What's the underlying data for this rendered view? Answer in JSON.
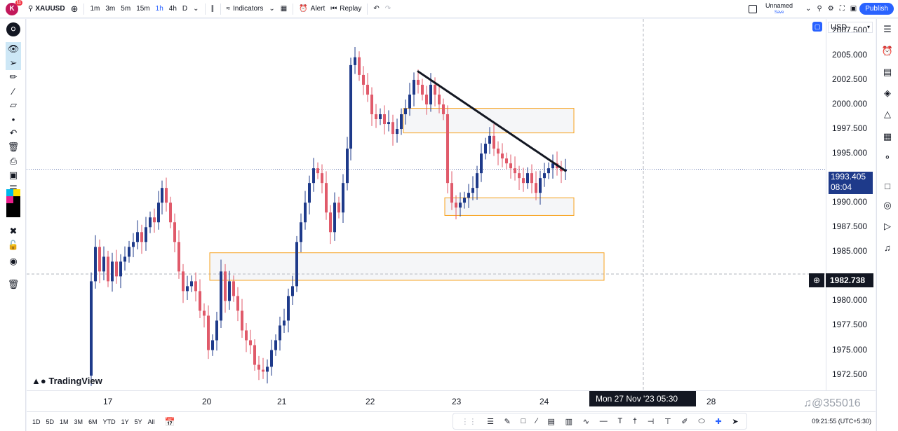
{
  "topbar": {
    "avatar_letter": "K",
    "avatar_badge": "11",
    "symbol": "XAUUSD",
    "intervals": [
      "1m",
      "3m",
      "5m",
      "15m",
      "1h",
      "4h",
      "D"
    ],
    "indicators_label": "Indicators",
    "alert_label": "Alert",
    "replay_label": "Replay",
    "layout_name": "Unnamed",
    "layout_status": "Save",
    "publish_label": "Publish"
  },
  "chart": {
    "currency": "USD",
    "watermark_logo": "TradingView",
    "last_price": "1993.405",
    "countdown": "08:04",
    "crosshair_price": "1982.738",
    "crosshair_time": "Mon 27 Nov '23   05:30",
    "price_ticks": [
      "2007.500",
      "2005.000",
      "2002.500",
      "2000.000",
      "1997.500",
      "1995.000",
      "1990.000",
      "1987.500",
      "1985.000",
      "1980.000",
      "1977.500",
      "1975.000",
      "1972.500"
    ],
    "time_ticks": [
      "17",
      "20",
      "21",
      "22",
      "23",
      "24",
      "28"
    ],
    "colors": {
      "up": "#1e3a8a",
      "down": "#e05a6a",
      "zone": "#f7a21e",
      "trend": "#131722"
    }
  },
  "chart_data": {
    "type": "candlestick",
    "symbol": "XAUUSD",
    "interval": "1h",
    "ylim": [
      1970.9,
      2008.7
    ],
    "x_ticks": [
      "17",
      "20",
      "21",
      "22",
      "23",
      "24",
      "28"
    ],
    "price_ticks": [
      2007.5,
      2005,
      2002.5,
      2000,
      1997.5,
      1995,
      1993.405,
      1990,
      1987.5,
      1985,
      1982.738,
      1980,
      1977.5,
      1975,
      1972.5
    ],
    "zones": [
      {
        "from": "22",
        "to": "24",
        "low": 1997.1,
        "high": 1999.6
      },
      {
        "from": "23",
        "to": "24",
        "low": 1988.7,
        "high": 1990.5
      },
      {
        "from": "20",
        "to": "24",
        "low": 1982.1,
        "high": 1984.9
      }
    ],
    "trendline": {
      "start": {
        "x": "22",
        "y": 2003.4
      },
      "end": {
        "x": "24",
        "y": 1993.2
      }
    },
    "last_price": 1993.405,
    "crosshair_price": 1982.738
  },
  "bottom": {
    "ranges": [
      "1D",
      "5D",
      "1M",
      "3M",
      "6M",
      "YTD",
      "1Y",
      "5Y",
      "All"
    ],
    "clock": "09:21:55 (UTC+5:30)",
    "watermark": "@355016"
  }
}
